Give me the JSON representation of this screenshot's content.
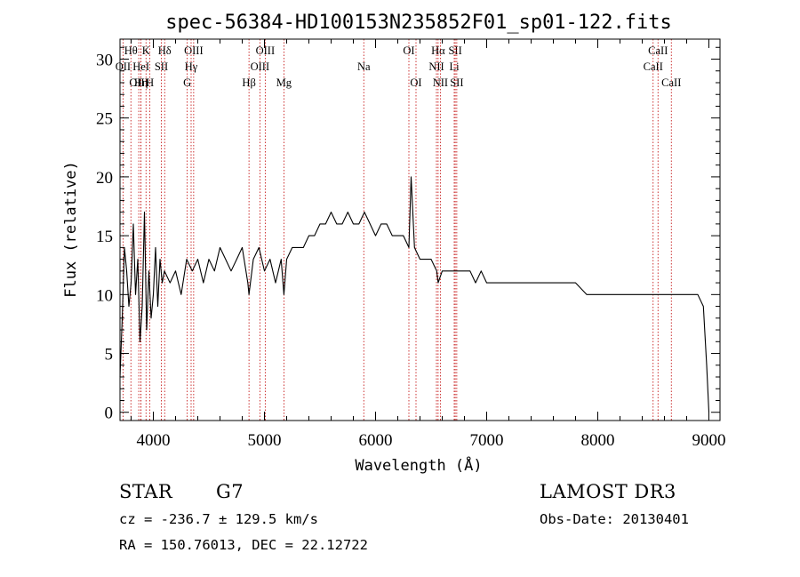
{
  "chart_data": {
    "type": "line",
    "title": "spec-56384-HD100153N235852F01_sp01-122.fits",
    "xlabel": "Wavelength (Å)",
    "ylabel": "Flux (relative)",
    "xlim": [
      3700,
      9100
    ],
    "ylim": [
      -0.7,
      31.7
    ],
    "xticks": [
      4000,
      5000,
      6000,
      7000,
      8000,
      9000
    ],
    "yticks": [
      0,
      5,
      10,
      15,
      20,
      25,
      30
    ],
    "series": [
      {
        "name": "flux",
        "x": [
          3700,
          3720,
          3740,
          3760,
          3780,
          3800,
          3820,
          3840,
          3860,
          3880,
          3900,
          3920,
          3940,
          3960,
          3980,
          4000,
          4020,
          4040,
          4060,
          4080,
          4100,
          4150,
          4200,
          4250,
          4300,
          4350,
          4400,
          4450,
          4500,
          4550,
          4600,
          4650,
          4700,
          4750,
          4800,
          4850,
          4861,
          4900,
          4950,
          5000,
          5050,
          5100,
          5150,
          5175,
          5200,
          5250,
          5300,
          5350,
          5400,
          5450,
          5500,
          5550,
          5600,
          5650,
          5700,
          5750,
          5800,
          5850,
          5900,
          5950,
          6000,
          6050,
          6100,
          6150,
          6200,
          6250,
          6300,
          6320,
          6350,
          6400,
          6450,
          6500,
          6550,
          6563,
          6600,
          6650,
          6700,
          6750,
          6800,
          6850,
          6900,
          6950,
          7000,
          7100,
          7200,
          7300,
          7400,
          7500,
          7600,
          7700,
          7800,
          7900,
          8000,
          8100,
          8200,
          8300,
          8400,
          8500,
          8600,
          8700,
          8800,
          8900,
          8950,
          8980,
          9000
        ],
        "y": [
          3,
          8,
          14,
          12,
          9,
          11,
          16,
          10,
          13,
          6,
          9,
          17,
          7,
          12,
          8,
          10,
          14,
          9,
          13,
          11,
          12,
          11,
          12,
          10,
          13,
          12,
          13,
          11,
          13,
          12,
          14,
          13,
          12,
          13,
          14,
          11,
          10,
          13,
          14,
          12,
          13,
          11,
          13,
          10,
          13,
          14,
          14,
          14,
          15,
          15,
          16,
          16,
          17,
          16,
          16,
          17,
          16,
          16,
          17,
          16,
          15,
          16,
          16,
          15,
          15,
          15,
          14,
          20,
          14,
          13,
          13,
          13,
          12,
          11,
          12,
          12,
          12,
          12,
          12,
          12,
          11,
          12,
          11,
          11,
          11,
          11,
          11,
          11,
          11,
          11,
          11,
          10,
          10,
          10,
          10,
          10,
          10,
          10,
          10,
          10,
          10,
          10,
          9,
          4,
          0
        ]
      }
    ],
    "line_markers": [
      {
        "label": "OII",
        "x": 3727,
        "row": 1
      },
      {
        "label": "Hθ",
        "x": 3798,
        "row": 0
      },
      {
        "label": "OIII",
        "x": 3869,
        "row": 2
      },
      {
        "label": "Hη",
        "x": 3889,
        "row": 2
      },
      {
        "label": "K",
        "x": 3934,
        "row": 0
      },
      {
        "label": "HeI",
        "x": 3889,
        "row": 1
      },
      {
        "label": "H",
        "x": 3969,
        "row": 2
      },
      {
        "label": "SII",
        "x": 4072,
        "row": 1
      },
      {
        "label": "Hδ",
        "x": 4102,
        "row": 0
      },
      {
        "label": "OIII",
        "x": 4363,
        "row": 0
      },
      {
        "label": "Hγ",
        "x": 4340,
        "row": 1
      },
      {
        "label": "G",
        "x": 4305,
        "row": 2
      },
      {
        "label": "Hβ",
        "x": 4861,
        "row": 2
      },
      {
        "label": "OIII",
        "x": 5007,
        "row": 0
      },
      {
        "label": "OIII",
        "x": 4959,
        "row": 1
      },
      {
        "label": "Mg",
        "x": 5175,
        "row": 2
      },
      {
        "label": "Na",
        "x": 5894,
        "row": 1
      },
      {
        "label": "OI",
        "x": 6300,
        "row": 0
      },
      {
        "label": "OI",
        "x": 6364,
        "row": 2
      },
      {
        "label": "Hα",
        "x": 6563,
        "row": 0
      },
      {
        "label": "NII",
        "x": 6548,
        "row": 1
      },
      {
        "label": "NII",
        "x": 6583,
        "row": 2
      },
      {
        "label": "SII",
        "x": 6717,
        "row": 0
      },
      {
        "label": "Li",
        "x": 6708,
        "row": 1
      },
      {
        "label": "SII",
        "x": 6731,
        "row": 2
      },
      {
        "label": "CaII",
        "x": 8542,
        "row": 0
      },
      {
        "label": "CaII",
        "x": 8498,
        "row": 1
      },
      {
        "label": "CaII",
        "x": 8662,
        "row": 2
      }
    ]
  },
  "info": {
    "class": "STAR",
    "subclass": "G7",
    "survey": "LAMOST DR3",
    "cz": "cz = -236.7 ± 129.5 km/s",
    "obs_date": "Obs-Date: 20130401",
    "radec": "RA = 150.76013, DEC =  22.12722"
  }
}
